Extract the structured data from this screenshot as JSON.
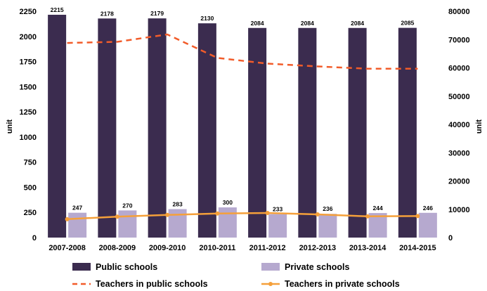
{
  "chart_data": {
    "type": "bar",
    "categories": [
      "2007-2008",
      "2008-2009",
      "2009-2010",
      "2010-2011",
      "2011-2012",
      "2012-2013",
      "2013-2014",
      "2014-2015"
    ],
    "series": [
      {
        "name": "Public schools",
        "kind": "bar",
        "axis": "left",
        "color": "#3b2c4f",
        "values": [
          2215,
          2178,
          2179,
          2130,
          2084,
          2084,
          2084,
          2085
        ],
        "labels_shown": true
      },
      {
        "name": "Private schools",
        "kind": "bar",
        "axis": "left",
        "color": "#b6a9cf",
        "values": [
          247,
          270,
          283,
          300,
          233,
          236,
          244,
          246
        ],
        "labels_shown": true
      },
      {
        "name": "Teachers in public schools",
        "kind": "line",
        "style": "dashed",
        "axis": "right",
        "color": "#f25c2a",
        "values": [
          68800,
          69200,
          71800,
          63500,
          61500,
          60500,
          59700,
          59700
        ]
      },
      {
        "name": "Teachers in private schools",
        "kind": "line",
        "style": "solid-markers",
        "axis": "right",
        "color": "#f5a03a",
        "values": [
          6500,
          7400,
          8000,
          8500,
          8700,
          8200,
          7500,
          7600
        ]
      }
    ],
    "y_left": {
      "label": "unit",
      "min": 0,
      "max": 2250,
      "step": 250,
      "ticks": [
        "0",
        "250",
        "500",
        "750",
        "1000",
        "1250",
        "1500",
        "1750",
        "2000",
        "2250"
      ]
    },
    "y_right": {
      "label": "unit",
      "min": 0,
      "max": 80000,
      "step": 10000,
      "ticks": [
        "0",
        "10000",
        "20000",
        "30000",
        "40000",
        "50000",
        "60000",
        "70000",
        "80000"
      ]
    },
    "grid": false,
    "legend": "bottom"
  }
}
